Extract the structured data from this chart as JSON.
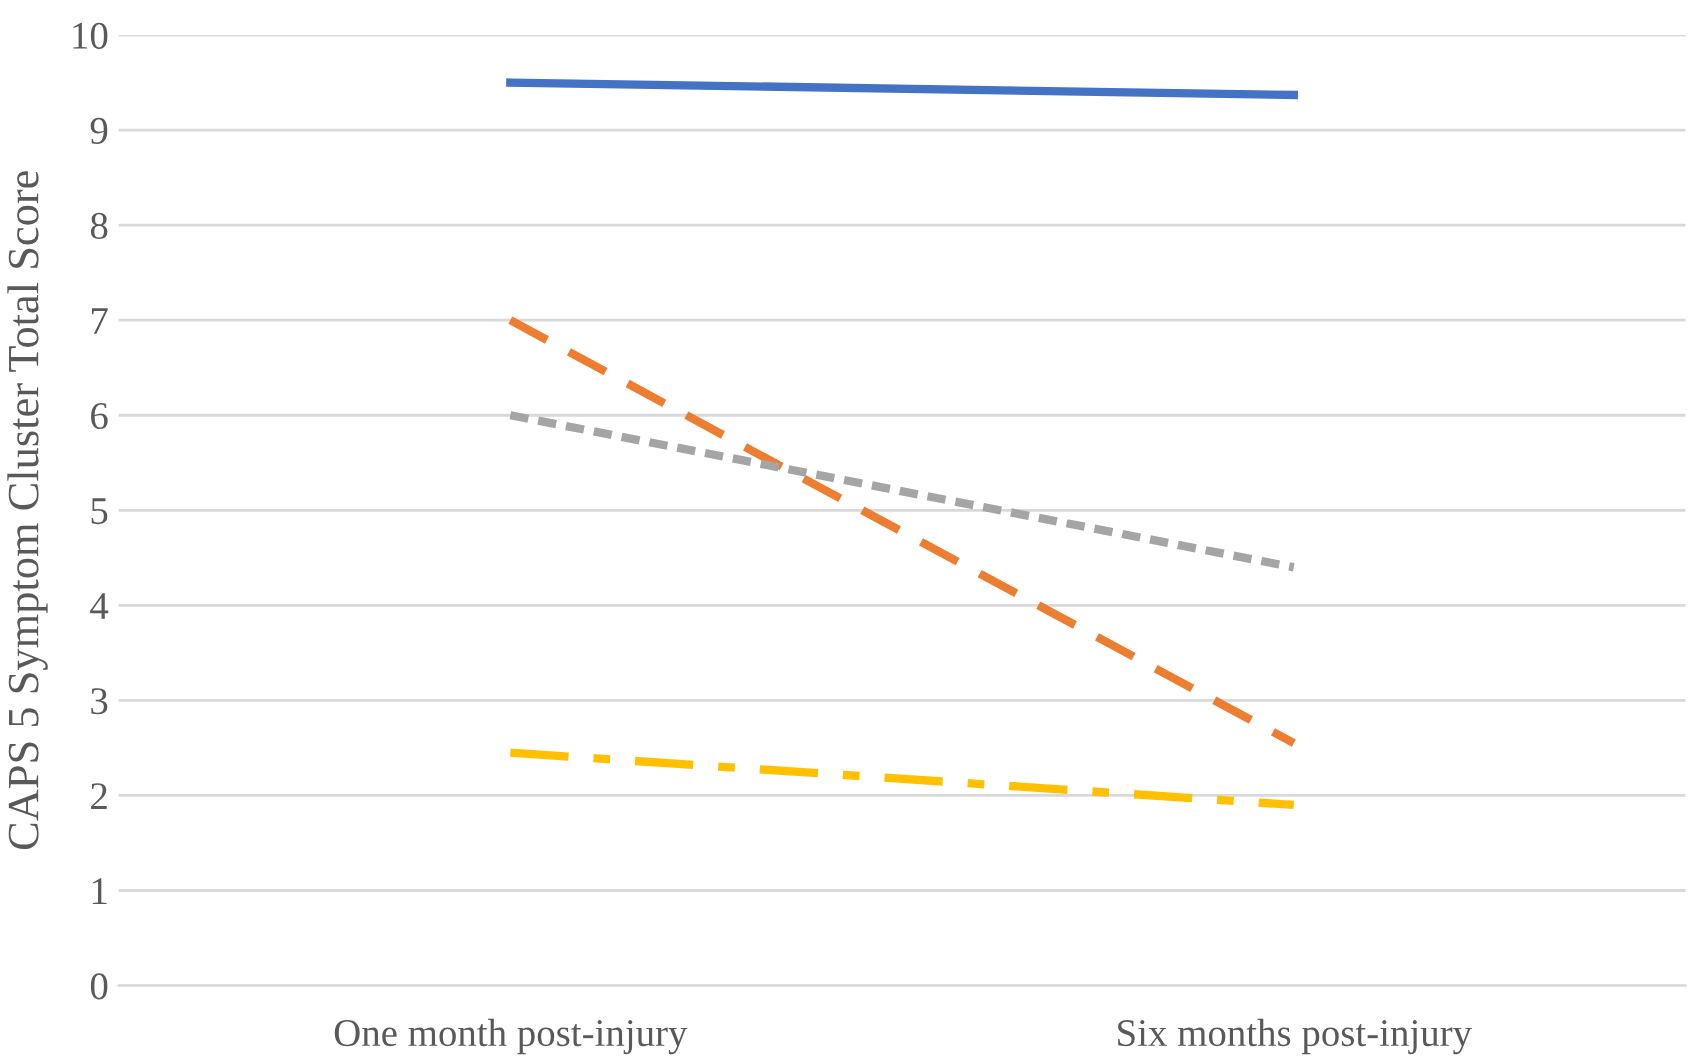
{
  "chart_data": {
    "type": "line",
    "ylabel": "CAPS 5 Symptom Cluster Total Score",
    "categories": [
      "One month post-injury",
      "Six months post-injury"
    ],
    "series": [
      {
        "color": "#4472c4",
        "values": [
          9.5,
          9.37
        ],
        "line_style": "solid"
      },
      {
        "color": "#ed7d31",
        "values": [
          7.0,
          2.55
        ],
        "line_style": "dashed"
      },
      {
        "color": "#a5a5a5",
        "values": [
          6.0,
          4.4
        ],
        "line_style": "dotted"
      },
      {
        "color": "#ffc000",
        "values": [
          2.45,
          1.9
        ],
        "line_style": "dashdot"
      }
    ],
    "ylim": [
      0,
      10
    ],
    "yticks": [
      0,
      1,
      2,
      3,
      4,
      5,
      6,
      7,
      8,
      9,
      10
    ],
    "grid": "y",
    "marker": "none"
  }
}
